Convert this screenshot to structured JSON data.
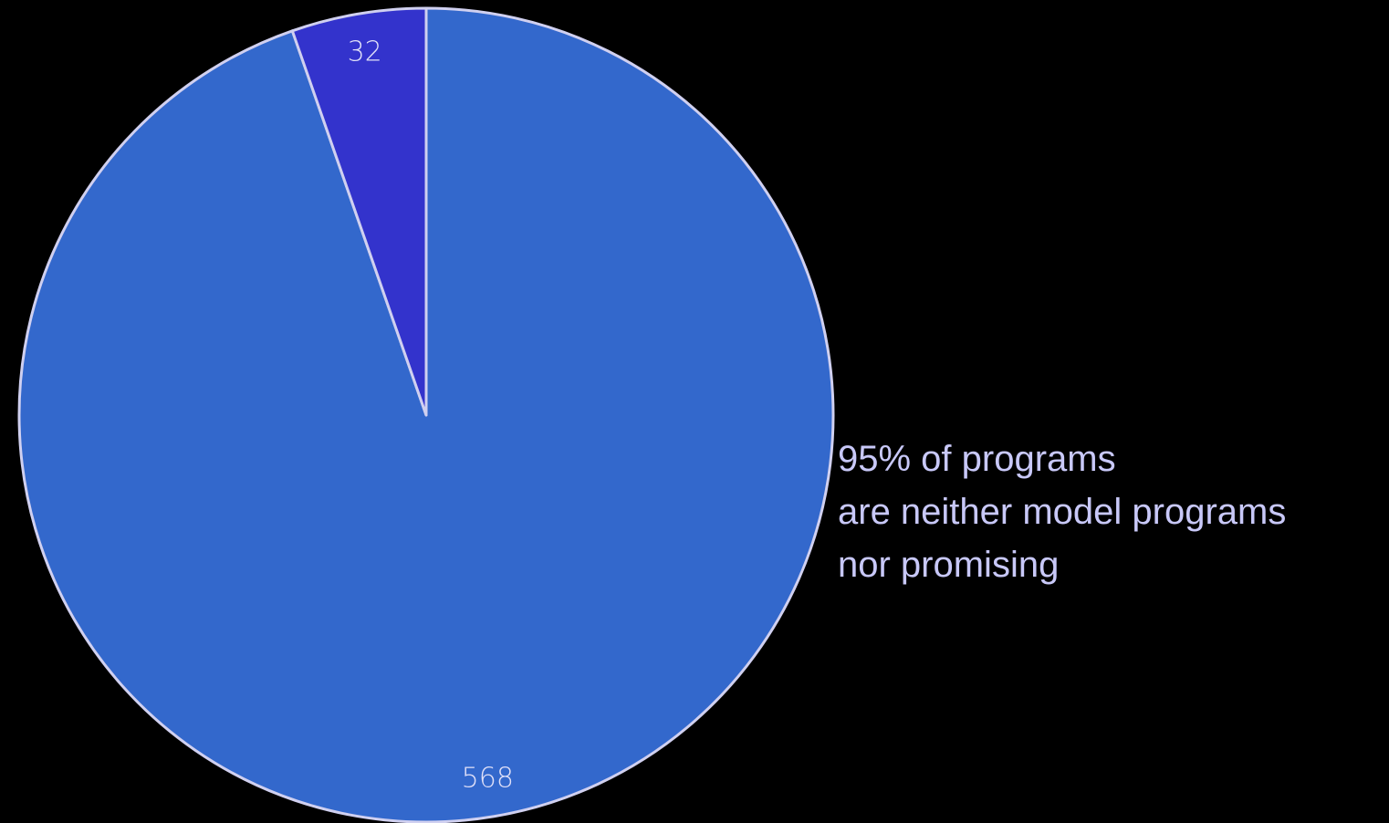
{
  "chart_data": {
    "type": "pie",
    "slices": [
      {
        "label": "568",
        "value": 568,
        "color": "#3368cc"
      },
      {
        "label": "32",
        "value": 32,
        "color": "#3333cc"
      }
    ],
    "start_angle": "12 o'clock",
    "direction": "clockwise",
    "stroke_color": "#d0d0f0",
    "label_color": "#e0e0f8",
    "background": "#000000"
  },
  "annotation": {
    "lines": [
      "95% of programs",
      "are neither model programs",
      "nor promising"
    ],
    "color": "#c8c8f8"
  }
}
